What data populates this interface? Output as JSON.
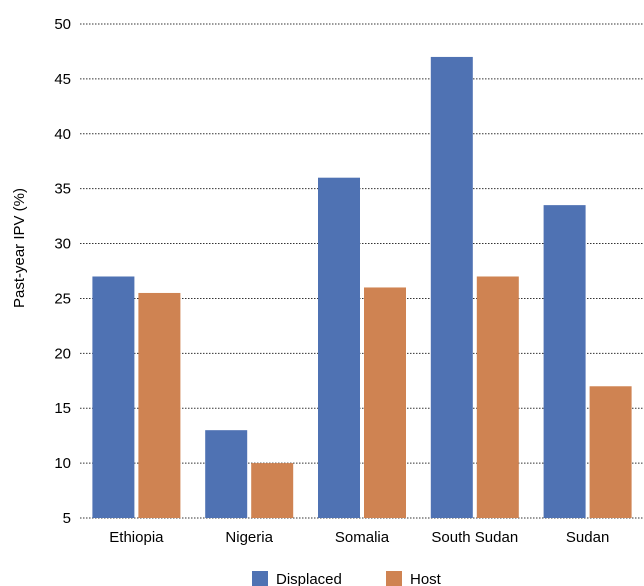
{
  "chart_data": {
    "type": "bar",
    "title": "",
    "xlabel": "",
    "ylabel": "Past-year IPV (%)",
    "categories": [
      "Ethiopia",
      "Nigeria",
      "Somalia",
      "South Sudan",
      "Sudan"
    ],
    "series": [
      {
        "name": "Displaced",
        "color": "#4f72b3",
        "values": [
          27,
          13,
          36,
          47,
          33.5
        ]
      },
      {
        "name": "Host",
        "color": "#cf8352",
        "values": [
          25.5,
          10,
          26,
          27,
          17
        ]
      }
    ],
    "ylim": [
      5,
      50
    ],
    "yticks": [
      5,
      10,
      15,
      20,
      25,
      30,
      35,
      40,
      45,
      50
    ],
    "grid": true,
    "legend_position": "bottom-center"
  }
}
